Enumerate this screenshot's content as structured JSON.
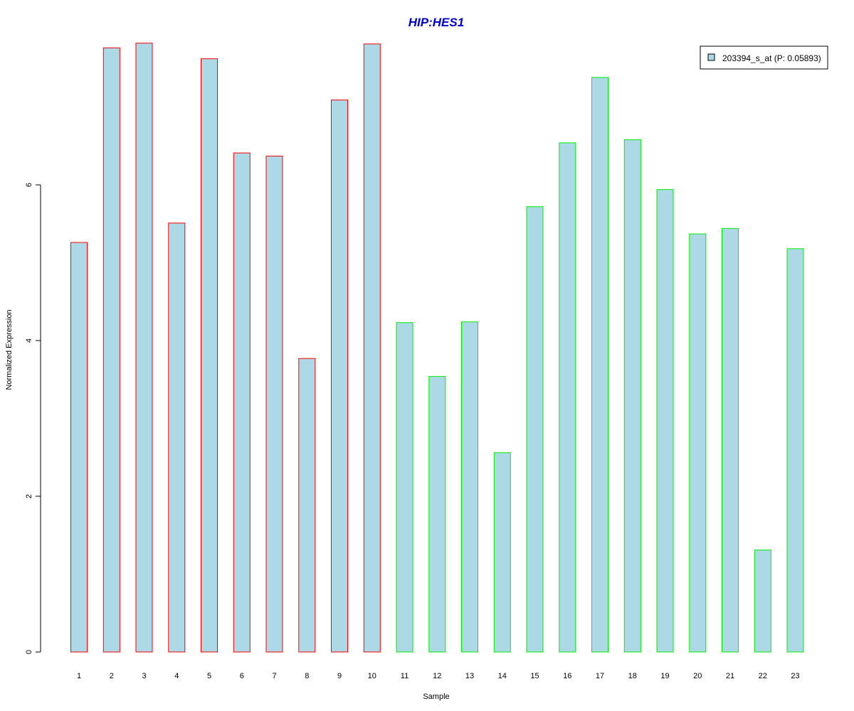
{
  "chart_data": {
    "type": "bar",
    "title": "HIP:HES1",
    "xlabel": "Sample",
    "ylabel": "Normalized Expression",
    "categories": [
      "1",
      "2",
      "3",
      "4",
      "5",
      "6",
      "7",
      "8",
      "9",
      "10",
      "11",
      "12",
      "13",
      "14",
      "15",
      "16",
      "17",
      "18",
      "19",
      "20",
      "21",
      "22",
      "23"
    ],
    "series": [
      {
        "name": "203394_s_at (P: 0.05893)",
        "values": [
          5.26,
          7.76,
          7.82,
          5.51,
          7.62,
          6.41,
          6.37,
          3.77,
          7.09,
          7.81,
          4.23,
          3.54,
          4.24,
          2.56,
          5.72,
          6.54,
          7.38,
          6.58,
          5.94,
          5.37,
          5.44,
          1.31,
          5.18
        ]
      }
    ],
    "groups": [
      {
        "samples": [
          1,
          10
        ],
        "border_color": "#ff0000"
      },
      {
        "samples": [
          11,
          23
        ],
        "border_color": "#00ee00"
      }
    ],
    "y_ticks": [
      "0",
      "2",
      "4",
      "6"
    ],
    "ylim": [
      0,
      7.82
    ],
    "legend_position": "top-right",
    "grid": false,
    "colors": {
      "bar_fill": "#add8e6",
      "title": "#0000cd",
      "axis": "#000000"
    }
  }
}
